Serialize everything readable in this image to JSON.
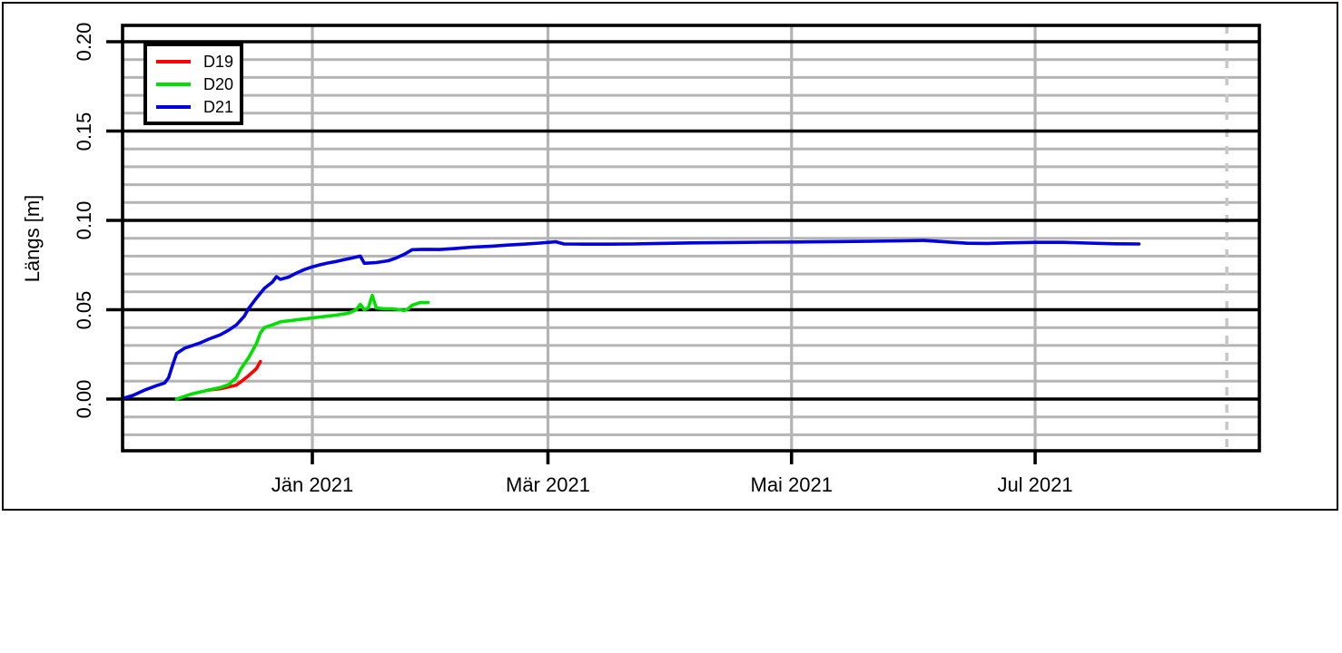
{
  "figure": {
    "background": "#ffffff",
    "outer_border_color": "#000000"
  },
  "chart_data": {
    "type": "line",
    "title": "",
    "xlabel": "",
    "ylabel": "Längs [m]",
    "ylim": [
      -0.029,
      0.208
    ],
    "xlim_dates": [
      "2020-11-14",
      "2021-08-26"
    ],
    "x_axis": {
      "ticks": [
        {
          "date": "2021-01-01",
          "label": "Jän 2021"
        },
        {
          "date": "2021-03-01",
          "label": "Mär 2021"
        },
        {
          "date": "2021-05-01",
          "label": "Mai 2021"
        },
        {
          "date": "2021-07-01",
          "label": "Jul 2021"
        }
      ]
    },
    "y_axis": {
      "major_ticks": [
        {
          "value": 0.0,
          "label": "0.00"
        },
        {
          "value": 0.05,
          "label": "0.05"
        },
        {
          "value": 0.1,
          "label": "0.10"
        },
        {
          "value": 0.15,
          "label": "0.15"
        },
        {
          "value": 0.2,
          "label": "0.20"
        }
      ],
      "minor_step": 0.01,
      "minor_range": [
        -0.02,
        0.19
      ]
    },
    "grid": {
      "major_color": "#000000",
      "minor_color": "#b4b4b4",
      "month_line_color": "#b4b4b4",
      "grid_on": true,
      "legend_position": "top-left"
    },
    "reference_line": {
      "date": "2021-08-18",
      "style": "dashed",
      "color": "#c8c8c8"
    },
    "legend": {
      "entries": [
        {
          "label": "D19",
          "color": "#ff0000"
        },
        {
          "label": "D20",
          "color": "#00e000"
        },
        {
          "label": "D21",
          "color": "#0000e0"
        }
      ]
    },
    "series": [
      {
        "name": "D19",
        "color": "#ff0000",
        "points": [
          [
            "2020-12-06",
            0.005
          ],
          [
            "2020-12-09",
            0.0058
          ],
          [
            "2020-12-11",
            0.0068
          ],
          [
            "2020-12-13",
            0.0078
          ],
          [
            "2020-12-14",
            0.0095
          ],
          [
            "2020-12-16",
            0.013
          ],
          [
            "2020-12-18",
            0.017
          ],
          [
            "2020-12-19",
            0.021
          ]
        ]
      },
      {
        "name": "D20",
        "color": "#00e000",
        "points": [
          [
            "2020-11-28",
            0.0
          ],
          [
            "2020-12-02",
            0.003
          ],
          [
            "2020-12-06",
            0.005
          ],
          [
            "2020-12-09",
            0.0065
          ],
          [
            "2020-12-11",
            0.008
          ],
          [
            "2020-12-13",
            0.012
          ],
          [
            "2020-12-14",
            0.0165
          ],
          [
            "2020-12-16",
            0.023
          ],
          [
            "2020-12-18",
            0.031
          ],
          [
            "2020-12-19",
            0.037
          ],
          [
            "2020-12-20",
            0.04
          ],
          [
            "2020-12-22",
            0.0415
          ],
          [
            "2020-12-24",
            0.0432
          ],
          [
            "2020-12-28",
            0.0443
          ],
          [
            "2021-01-02",
            0.0457
          ],
          [
            "2021-01-07",
            0.047
          ],
          [
            "2021-01-10",
            0.048
          ],
          [
            "2021-01-12",
            0.05
          ],
          [
            "2021-01-13",
            0.053
          ],
          [
            "2021-01-14",
            0.05
          ],
          [
            "2021-01-15",
            0.051
          ],
          [
            "2021-01-16",
            0.058
          ],
          [
            "2021-01-17",
            0.051
          ],
          [
            "2021-01-19",
            0.0505
          ],
          [
            "2021-01-21",
            0.0505
          ],
          [
            "2021-01-23",
            0.05
          ],
          [
            "2021-01-24",
            0.0495
          ],
          [
            "2021-01-25",
            0.0505
          ],
          [
            "2021-01-26",
            0.0525
          ],
          [
            "2021-01-28",
            0.054
          ],
          [
            "2021-01-30",
            0.054
          ]
        ]
      },
      {
        "name": "D21",
        "color": "#0000e0",
        "points": [
          [
            "2020-11-14",
            0.0
          ],
          [
            "2020-11-17",
            0.002
          ],
          [
            "2020-11-20",
            0.005
          ],
          [
            "2020-11-23",
            0.0075
          ],
          [
            "2020-11-25",
            0.009
          ],
          [
            "2020-11-26",
            0.012
          ],
          [
            "2020-11-27",
            0.019
          ],
          [
            "2020-11-28",
            0.0255
          ],
          [
            "2020-11-30",
            0.0285
          ],
          [
            "2020-12-02",
            0.03
          ],
          [
            "2020-12-04",
            0.0315
          ],
          [
            "2020-12-06",
            0.0335
          ],
          [
            "2020-12-09",
            0.036
          ],
          [
            "2020-12-11",
            0.0385
          ],
          [
            "2020-12-13",
            0.0415
          ],
          [
            "2020-12-14",
            0.044
          ],
          [
            "2020-12-15",
            0.0465
          ],
          [
            "2020-12-16",
            0.0505
          ],
          [
            "2020-12-18",
            0.0565
          ],
          [
            "2020-12-20",
            0.062
          ],
          [
            "2020-12-22",
            0.0655
          ],
          [
            "2020-12-23",
            0.0685
          ],
          [
            "2020-12-24",
            0.067
          ],
          [
            "2020-12-26",
            0.0682
          ],
          [
            "2020-12-28",
            0.0705
          ],
          [
            "2020-12-30",
            0.0725
          ],
          [
            "2021-01-01",
            0.074
          ],
          [
            "2021-01-03",
            0.0752
          ],
          [
            "2021-01-05",
            0.0762
          ],
          [
            "2021-01-07",
            0.077
          ],
          [
            "2021-01-09",
            0.078
          ],
          [
            "2021-01-11",
            0.079
          ],
          [
            "2021-01-13",
            0.08
          ],
          [
            "2021-01-14",
            0.076
          ],
          [
            "2021-01-17",
            0.0764
          ],
          [
            "2021-01-20",
            0.0774
          ],
          [
            "2021-01-22",
            0.079
          ],
          [
            "2021-01-24",
            0.081
          ],
          [
            "2021-01-26",
            0.0836
          ],
          [
            "2021-01-29",
            0.0838
          ],
          [
            "2021-02-02",
            0.0837
          ],
          [
            "2021-02-06",
            0.0843
          ],
          [
            "2021-02-10",
            0.085
          ],
          [
            "2021-02-15",
            0.0856
          ],
          [
            "2021-02-19",
            0.0862
          ],
          [
            "2021-02-23",
            0.0867
          ],
          [
            "2021-02-27",
            0.0873
          ],
          [
            "2021-03-03",
            0.088
          ],
          [
            "2021-03-05",
            0.0868
          ],
          [
            "2021-03-10",
            0.0867
          ],
          [
            "2021-03-16",
            0.0867
          ],
          [
            "2021-03-22",
            0.0868
          ],
          [
            "2021-03-29",
            0.0871
          ],
          [
            "2021-04-06",
            0.0874
          ],
          [
            "2021-04-15",
            0.0876
          ],
          [
            "2021-04-24",
            0.0878
          ],
          [
            "2021-05-03",
            0.0879
          ],
          [
            "2021-05-12",
            0.0881
          ],
          [
            "2021-05-21",
            0.0883
          ],
          [
            "2021-05-29",
            0.0886
          ],
          [
            "2021-06-03",
            0.0888
          ],
          [
            "2021-06-09",
            0.0879
          ],
          [
            "2021-06-14",
            0.0872
          ],
          [
            "2021-06-19",
            0.0871
          ],
          [
            "2021-06-24",
            0.0874
          ],
          [
            "2021-07-01",
            0.0877
          ],
          [
            "2021-07-08",
            0.0877
          ],
          [
            "2021-07-14",
            0.0873
          ],
          [
            "2021-07-21",
            0.0869
          ],
          [
            "2021-07-27",
            0.0868
          ]
        ]
      }
    ]
  }
}
